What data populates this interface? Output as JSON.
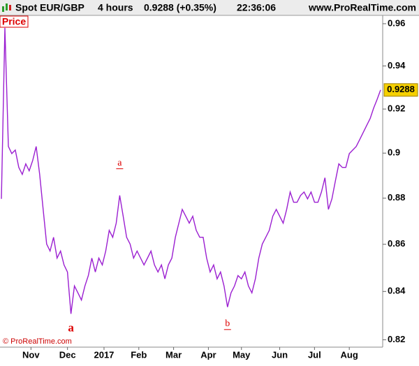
{
  "chart_data": {
    "type": "line",
    "header": {
      "symbol": "Spot EUR/GBP",
      "timeframe": "4 hours",
      "quote": "0.9288 (+0.35%)",
      "time": "22:36:06",
      "site": "www.ProRealTime.com"
    },
    "panel_label": "Price",
    "copyright": "© ProRealTime.com",
    "color": "#9b1fd1",
    "log_scale": true,
    "grid": false,
    "values": [
      0.8797,
      0.958,
      0.903,
      0.8998,
      0.9014,
      0.8936,
      0.8905,
      0.8952,
      0.8921,
      0.8967,
      0.903,
      0.8905,
      0.8751,
      0.8601,
      0.8571,
      0.863,
      0.8541,
      0.8571,
      0.8512,
      0.8482,
      0.8307,
      0.8423,
      0.8394,
      0.8364,
      0.8423,
      0.8467,
      0.8541,
      0.8482,
      0.8541,
      0.8512,
      0.8571,
      0.866,
      0.863,
      0.8691,
      0.8812,
      0.8721,
      0.863,
      0.8601,
      0.8541,
      0.8571,
      0.8541,
      0.8512,
      0.8541,
      0.8571,
      0.8512,
      0.8482,
      0.8512,
      0.8453,
      0.8512,
      0.8541,
      0.863,
      0.8691,
      0.8751,
      0.8721,
      0.8691,
      0.8721,
      0.866,
      0.863,
      0.863,
      0.8541,
      0.8482,
      0.8512,
      0.8453,
      0.8482,
      0.8423,
      0.8335,
      0.8394,
      0.8423,
      0.8467,
      0.8453,
      0.8482,
      0.8423,
      0.8394,
      0.8453,
      0.8541,
      0.8601,
      0.863,
      0.866,
      0.8721,
      0.8751,
      0.8721,
      0.8691,
      0.8751,
      0.8827,
      0.8782,
      0.8782,
      0.8812,
      0.8827,
      0.8797,
      0.8827,
      0.8782,
      0.8782,
      0.8827,
      0.889,
      0.8751,
      0.8797,
      0.8875,
      0.8952,
      0.8936,
      0.8936,
      0.8998,
      0.9014,
      0.903,
      0.9061,
      0.9093,
      0.9125,
      0.9157,
      0.9204,
      0.9244,
      0.9288
    ],
    "last_value": 0.9288,
    "xlim": [
      -0.4,
      109.6
    ],
    "xticks": [
      {
        "value": 8.5,
        "label": "Nov"
      },
      {
        "value": 19,
        "label": "Dec"
      },
      {
        "value": 29.5,
        "label": "2017"
      },
      {
        "value": 39.5,
        "label": "Feb"
      },
      {
        "value": 49.5,
        "label": "Mar"
      },
      {
        "value": 59.5,
        "label": "Apr"
      },
      {
        "value": 69,
        "label": "May"
      },
      {
        "value": 80,
        "label": "Jun"
      },
      {
        "value": 90,
        "label": "Jul"
      },
      {
        "value": 100,
        "label": "Aug"
      }
    ],
    "ylim": [
      0.817,
      0.964
    ],
    "yticks": [
      0.96,
      0.94,
      0.92,
      0.9,
      0.88,
      0.86,
      0.84,
      0.82
    ],
    "annotations": [
      {
        "text": "a",
        "x": 20,
        "y": 0.8245,
        "style": "major"
      },
      {
        "text": "a",
        "x": 34,
        "y": 0.8955,
        "style": "minor"
      },
      {
        "text": "b",
        "x": 65,
        "y": 0.8265,
        "style": "minor"
      }
    ]
  }
}
